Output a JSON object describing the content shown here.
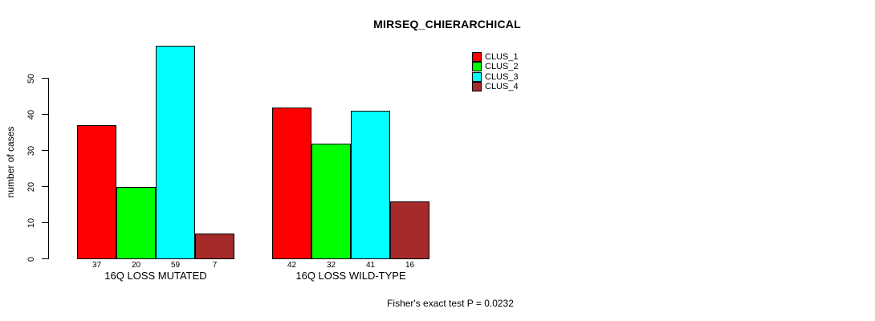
{
  "chart_data": {
    "type": "bar",
    "title": "MIRSEQ_CHIERARCHICAL",
    "ylabel": "number of cases",
    "xlabel": "",
    "categories": [
      "16Q LOSS MUTATED",
      "16Q LOSS WILD-TYPE"
    ],
    "series": [
      {
        "name": "CLUS_1",
        "color": "#FF0000",
        "values": [
          37,
          42
        ]
      },
      {
        "name": "CLUS_2",
        "color": "#00FF00",
        "values": [
          20,
          32
        ]
      },
      {
        "name": "CLUS_3",
        "color": "#00FFFF",
        "values": [
          59,
          41
        ]
      },
      {
        "name": "CLUS_4",
        "color": "#A52A2A",
        "values": [
          7,
          16
        ]
      }
    ],
    "bar_value_labels_shown": true,
    "yticks": [
      0,
      10,
      20,
      30,
      40,
      50
    ],
    "ylim": [
      0,
      59
    ],
    "grid": false,
    "legend_position": "top-right",
    "legend_entries": [
      "CLUS_1",
      "CLUS_2",
      "CLUS_3",
      "CLUS_4"
    ],
    "annotation": "Fisher's exact test P = 0.0232"
  }
}
